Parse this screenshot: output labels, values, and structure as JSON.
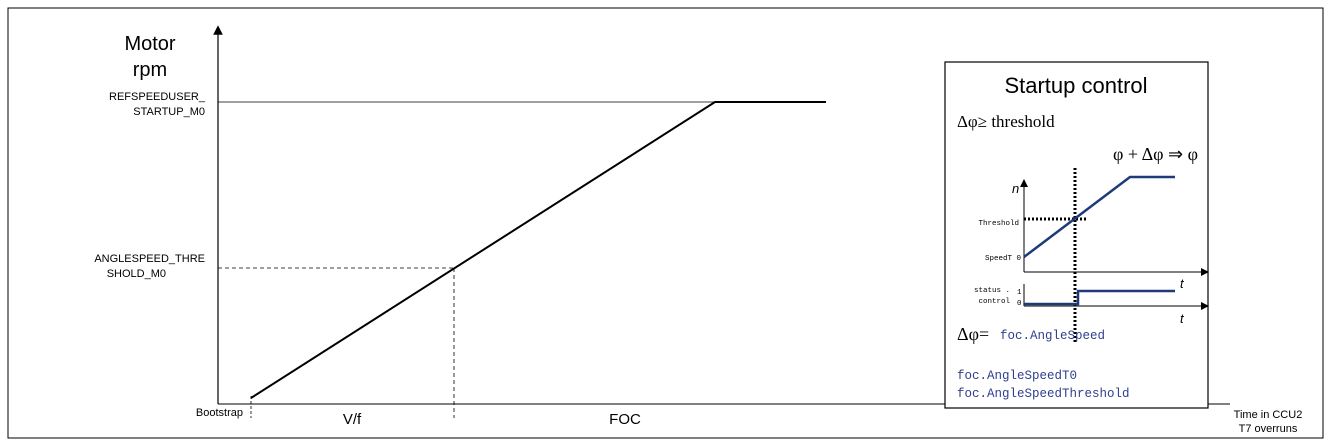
{
  "main_plot": {
    "y_label_line1": "Motor",
    "y_label_line2": "rpm",
    "ref_speed_label_line1": "REFSPEEDUSER_",
    "ref_speed_label_line2": "STARTUP_M0",
    "threshold_label_line1": "ANGLESPEED_THRE",
    "threshold_label_line2": "SHOLD_M0",
    "bootstrap_label": "Bootstrap",
    "vf_label": "V/f",
    "foc_label": "FOC",
    "x_label_line1": "Time in CCU2",
    "x_label_line2": "T7 overruns"
  },
  "startup_box": {
    "title": "Startup control",
    "condition": "Δφ≥ threshold",
    "update_rule": "φ + Δφ ⇒ φ",
    "n_axis": "n",
    "threshold_tick": "Threshold",
    "speedt_tick": "SpeedT 0",
    "t_axis_1": "t",
    "status_label_line1": "status .",
    "status_label_line2": "control",
    "status_tick_1": "1",
    "status_tick_0": "0",
    "t_axis_2": "t",
    "delta_phi_label": "Δφ=",
    "delta_phi_value": "foc.AngleSpeed",
    "var_1": "foc.AngleSpeedT0",
    "var_2": "foc.AngleSpeedThreshold"
  },
  "colors": {
    "line": "#000000",
    "accent": "#1f3a7a",
    "code": "#2f3f8f"
  }
}
